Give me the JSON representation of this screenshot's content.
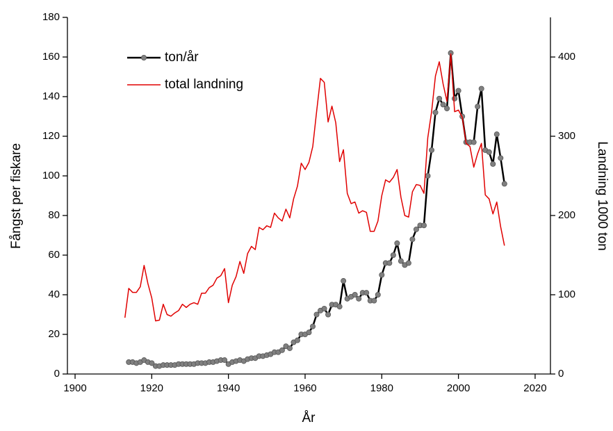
{
  "chart_data": {
    "type": "line",
    "xlabel": "År",
    "ylabel": "Fångst per fiskare",
    "y2label": "Landning 1000 ton",
    "x": [
      1913,
      1914,
      1915,
      1916,
      1917,
      1918,
      1919,
      1920,
      1921,
      1922,
      1923,
      1924,
      1925,
      1926,
      1927,
      1928,
      1929,
      1930,
      1931,
      1932,
      1933,
      1934,
      1935,
      1936,
      1937,
      1938,
      1939,
      1940,
      1941,
      1942,
      1943,
      1944,
      1945,
      1946,
      1947,
      1948,
      1949,
      1950,
      1951,
      1952,
      1953,
      1954,
      1955,
      1956,
      1957,
      1958,
      1959,
      1960,
      1961,
      1962,
      1963,
      1964,
      1965,
      1966,
      1967,
      1968,
      1969,
      1970,
      1971,
      1972,
      1973,
      1974,
      1975,
      1976,
      1977,
      1978,
      1979,
      1980,
      1981,
      1982,
      1983,
      1984,
      1985,
      1986,
      1987,
      1988,
      1989,
      1990,
      1991,
      1992,
      1993,
      1994,
      1995,
      1996,
      1997,
      1998,
      1999,
      2000,
      2001,
      2002,
      2003,
      2004,
      2005,
      2006,
      2007,
      2008,
      2009,
      2010,
      2011,
      2012
    ],
    "series": [
      {
        "name": "ton/år",
        "color": "#000000",
        "marker_color": "#808080",
        "axis": "y",
        "values": [
          null,
          6,
          6,
          5.5,
          6,
          7,
          6,
          5.5,
          4,
          4,
          4.5,
          4.5,
          4.5,
          4.5,
          5,
          5,
          5,
          5,
          5,
          5.5,
          5.5,
          5.5,
          6,
          6,
          6.5,
          7,
          7,
          5,
          6,
          6.5,
          7,
          6.5,
          7.5,
          8,
          8,
          9,
          9,
          9.5,
          10,
          11,
          11,
          12,
          14,
          13,
          16,
          17,
          20,
          20,
          21,
          24,
          30,
          32,
          33,
          30,
          35,
          35,
          34,
          47,
          38,
          39,
          40,
          38,
          41,
          41,
          37,
          37,
          40,
          50,
          56,
          56,
          60,
          66,
          57,
          55,
          56,
          68,
          73,
          75,
          75,
          100,
          113,
          132,
          139,
          136,
          134,
          162,
          139,
          143,
          130,
          117,
          117,
          117,
          135,
          144,
          113,
          112,
          106,
          121,
          109,
          96
        ]
      },
      {
        "name": "total landning",
        "color": "#e00000",
        "axis": "y2",
        "values": [
          71,
          108,
          103,
          103,
          110,
          137,
          114,
          96,
          67,
          68,
          88,
          75,
          73,
          77,
          80,
          88,
          84,
          88,
          90,
          88,
          102,
          102,
          109,
          112,
          121,
          124,
          133,
          90,
          112,
          123,
          142,
          127,
          152,
          161,
          157,
          185,
          182,
          187,
          185,
          203,
          197,
          193,
          208,
          197,
          221,
          237,
          266,
          258,
          267,
          287,
          331,
          373,
          368,
          318,
          338,
          317,
          268,
          283,
          228,
          215,
          217,
          203,
          206,
          204,
          180,
          180,
          193,
          225,
          245,
          242,
          248,
          258,
          223,
          200,
          198,
          230,
          239,
          238,
          228,
          298,
          331,
          376,
          394,
          366,
          344,
          404,
          331,
          333,
          324,
          291,
          287,
          261,
          278,
          291,
          226,
          221,
          202,
          217,
          186,
          162
        ]
      }
    ],
    "xlim": [
      1898,
      2024
    ],
    "xticks": [
      1900,
      1920,
      1940,
      1960,
      1980,
      2000,
      2020
    ],
    "ylim": [
      0,
      180
    ],
    "yticks": [
      0,
      20,
      40,
      60,
      80,
      100,
      120,
      140,
      160,
      180
    ],
    "y2lim": [
      0,
      450
    ],
    "y2ticks": [
      0,
      100,
      200,
      300,
      400
    ],
    "grid": false,
    "legend": "upper left"
  }
}
